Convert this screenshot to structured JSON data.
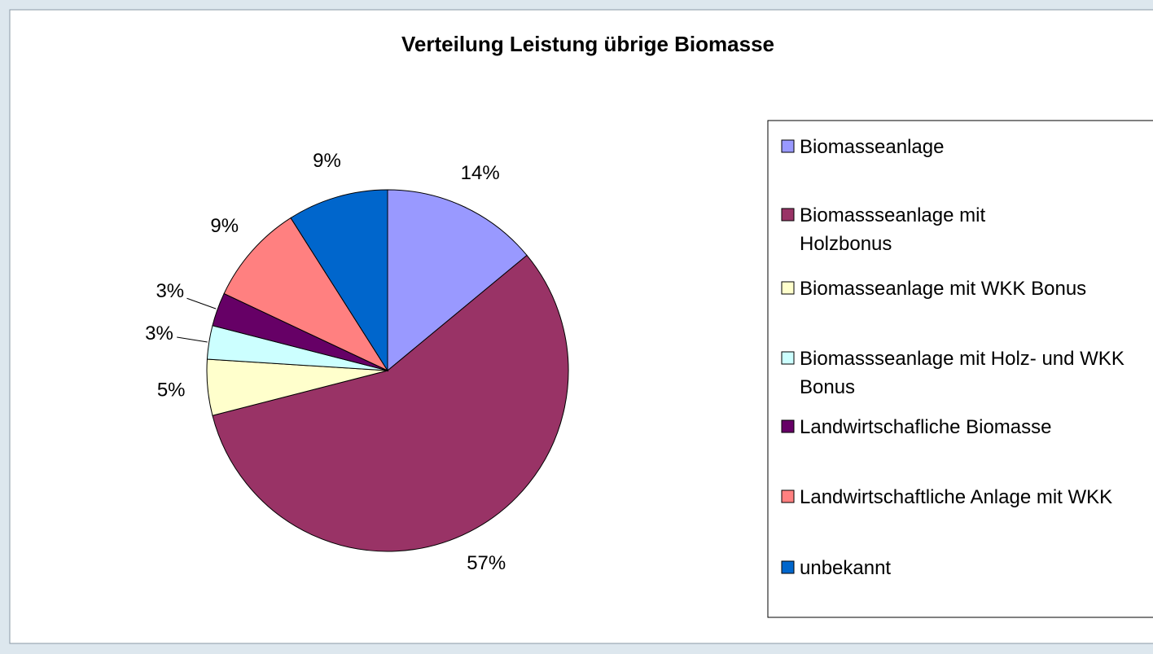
{
  "chart_data": {
    "type": "pie",
    "title": "Verteilung Leistung übrige Biomasse",
    "categories": [
      "Biomasseanlage",
      "Biomassseanlage mit Holzbonus",
      "Biomasseanlage mit WKK Bonus",
      "Biomassseanlage mit Holz- und WKK Bonus",
      "Landwirtschafliche Biomasse",
      "Landwirtschaftliche Anlage mit WKK",
      "unbekannt"
    ],
    "values": [
      14,
      57,
      5,
      3,
      3,
      9,
      9
    ],
    "value_labels": [
      "14%",
      "57%",
      "5%",
      "3%",
      "3%",
      "9%",
      "9%"
    ],
    "colors": [
      "#9999ff",
      "#993366",
      "#ffffcc",
      "#ccffff",
      "#660066",
      "#ff8080",
      "#0066cc"
    ],
    "legend": "right"
  }
}
